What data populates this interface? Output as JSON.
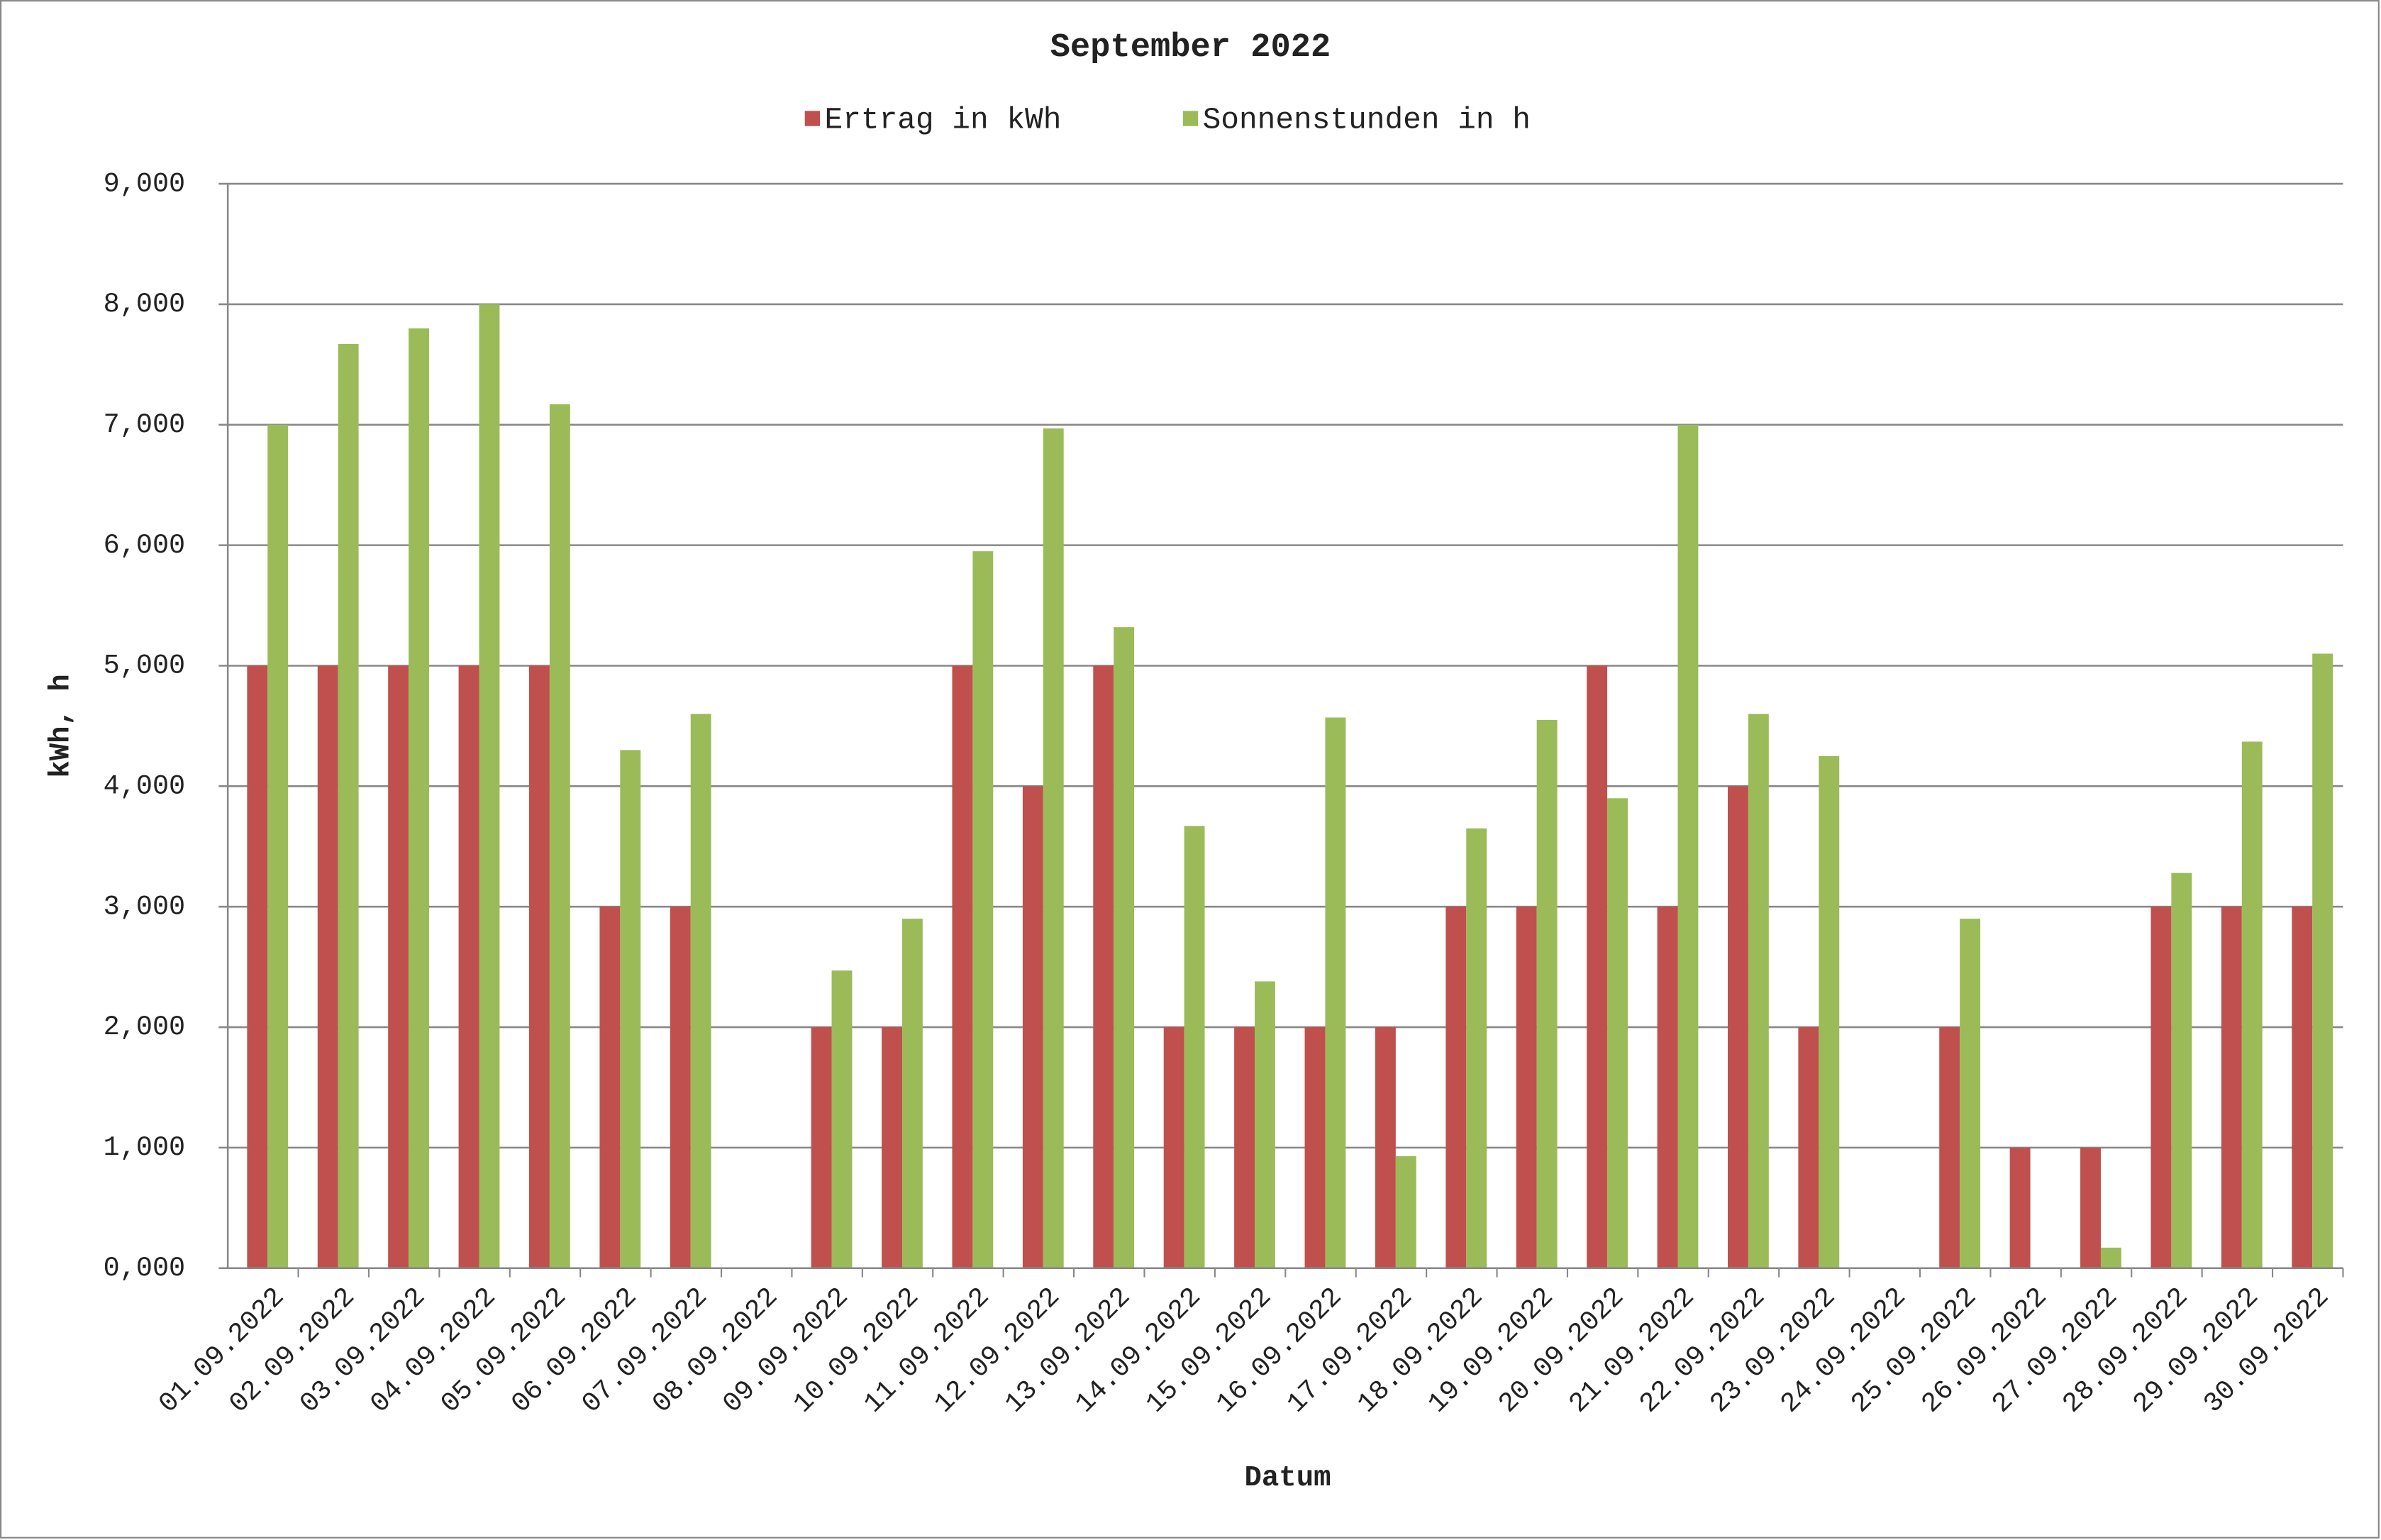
{
  "chart_data": {
    "type": "bar",
    "title": "September 2022",
    "x_label": "Datum",
    "y_label": "kWh, h",
    "categories": [
      "01.09.2022",
      "02.09.2022",
      "03.09.2022",
      "04.09.2022",
      "05.09.2022",
      "06.09.2022",
      "07.09.2022",
      "08.09.2022",
      "09.09.2022",
      "10.09.2022",
      "11.09.2022",
      "12.09.2022",
      "13.09.2022",
      "14.09.2022",
      "15.09.2022",
      "16.09.2022",
      "17.09.2022",
      "18.09.2022",
      "19.09.2022",
      "20.09.2022",
      "21.09.2022",
      "22.09.2022",
      "23.09.2022",
      "24.09.2022",
      "25.09.2022",
      "26.09.2022",
      "27.09.2022",
      "28.09.2022",
      "29.09.2022",
      "30.09.2022"
    ],
    "series": [
      {
        "name": "Ertrag in kWh",
        "color": "#c0504d",
        "values": [
          5,
          5,
          5,
          5,
          5,
          3,
          3,
          0,
          2,
          2,
          5,
          4,
          5,
          2,
          2,
          2,
          2,
          3,
          3,
          5,
          3,
          4,
          2,
          0,
          2,
          1,
          1,
          3,
          3,
          3
        ]
      },
      {
        "name": "Sonnenstunden in h",
        "color": "#9bbb59",
        "values": [
          7.0,
          7.67,
          7.8,
          8.0,
          7.17,
          4.3,
          4.6,
          0,
          2.47,
          2.9,
          5.95,
          6.97,
          5.32,
          3.67,
          2.38,
          4.57,
          0.93,
          3.65,
          4.55,
          3.9,
          7.0,
          4.6,
          4.25,
          0,
          2.9,
          0,
          0.17,
          3.28,
          4.37,
          5.1
        ]
      }
    ],
    "ylim": [
      0,
      9
    ],
    "yticks": [
      {
        "value": 0,
        "label": "0,000"
      },
      {
        "value": 1,
        "label": "1,000"
      },
      {
        "value": 2,
        "label": "2,000"
      },
      {
        "value": 3,
        "label": "3,000"
      },
      {
        "value": 4,
        "label": "4,000"
      },
      {
        "value": 5,
        "label": "5,000"
      },
      {
        "value": 6,
        "label": "6,000"
      },
      {
        "value": 7,
        "label": "7,000"
      },
      {
        "value": 8,
        "label": "8,000"
      },
      {
        "value": 9,
        "label": "9,000"
      }
    ],
    "grid": true,
    "legend": "top"
  }
}
